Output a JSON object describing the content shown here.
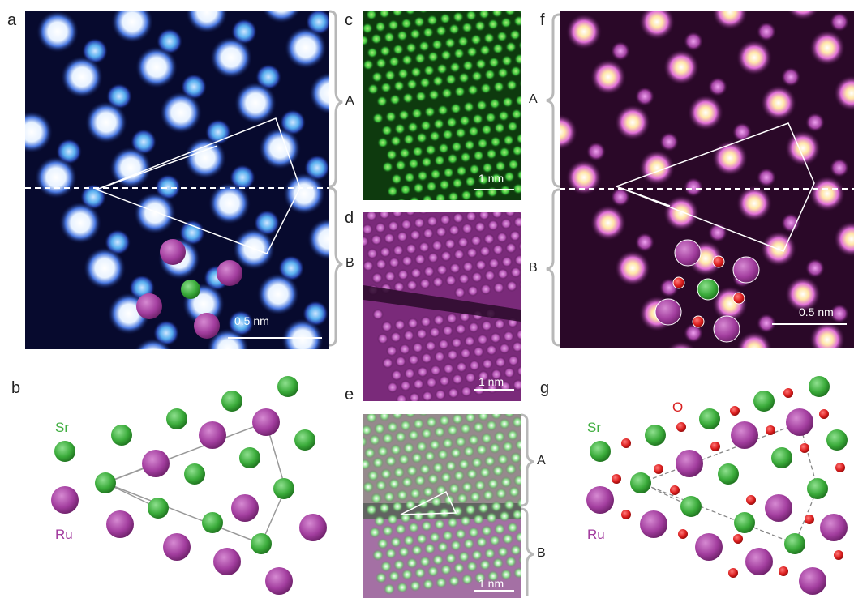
{
  "panels": {
    "a": {
      "label": "a",
      "scalebar": "0.5 nm",
      "region_labels": [
        "A",
        "B"
      ]
    },
    "b": {
      "label": "b",
      "legend": {
        "sr": "Sr",
        "ru": "Ru"
      }
    },
    "c": {
      "label": "c",
      "scalebar": "1 nm"
    },
    "d": {
      "label": "d",
      "scalebar": "1 nm"
    },
    "e": {
      "label": "e",
      "scalebar": "1 nm",
      "region_labels": [
        "A",
        "B"
      ]
    },
    "f": {
      "label": "f",
      "scalebar": "0.5 nm",
      "region_labels": [
        "A",
        "B"
      ]
    },
    "g": {
      "label": "g",
      "legend": {
        "sr": "Sr",
        "ru": "Ru",
        "o": "O"
      }
    }
  },
  "colors": {
    "sr_green": "#3fae3f",
    "ru_magenta": "#a23a9e",
    "o_red": "#d81e1e",
    "bracket_gray": "#b8b8b8",
    "blue_bg": "#06082a",
    "magenta_bg": "#2a0628"
  }
}
